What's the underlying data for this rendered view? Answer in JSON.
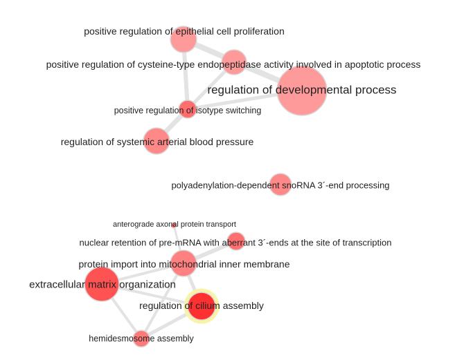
{
  "network": {
    "nodes": [
      {
        "id": "n1",
        "label": "positive regulation of epithelial cell proliferation",
        "color": "#ff9a9a"
      },
      {
        "id": "n2",
        "label": "positive regulation of cysteine-type endopeptidase activity involved in apoptotic process",
        "color": "#ff9a9a"
      },
      {
        "id": "n3",
        "label": "regulation of developmental process",
        "color": "#ff9a9a"
      },
      {
        "id": "n4",
        "label": "positive regulation of isotype switching",
        "color": "#ff6e6e"
      },
      {
        "id": "n5",
        "label": "regulation of systemic arterial blood pressure",
        "color": "#ff8888"
      },
      {
        "id": "n6",
        "label": "polyadenylation-dependent snoRNA 3´-end processing",
        "color": "#ff8888"
      },
      {
        "id": "n7",
        "label": "anterograde axonal protein transport",
        "color": "#ff7070"
      },
      {
        "id": "n8",
        "label": "nuclear retention of pre-mRNA with aberrant 3´-ends at the site of transcription",
        "color": "#ff7070"
      },
      {
        "id": "n9",
        "label": "protein import into mitochondrial inner membrane",
        "color": "#ff8080"
      },
      {
        "id": "n10",
        "label": "extracellular matrix organization",
        "color": "#ff5252"
      },
      {
        "id": "n11",
        "label": "regulation of cilium assembly",
        "color": "#ff3030",
        "highlighted": true
      },
      {
        "id": "n12",
        "label": "hemidesmosome assembly",
        "color": "#ff7a7a"
      }
    ],
    "edges": [
      {
        "source": "n1",
        "target": "n2"
      },
      {
        "source": "n1",
        "target": "n3"
      },
      {
        "source": "n1",
        "target": "n4"
      },
      {
        "source": "n2",
        "target": "n3"
      },
      {
        "source": "n2",
        "target": "n4"
      },
      {
        "source": "n4",
        "target": "n3"
      },
      {
        "source": "n4",
        "target": "n5"
      },
      {
        "source": "n7",
        "target": "n9"
      },
      {
        "source": "n8",
        "target": "n9"
      },
      {
        "source": "n9",
        "target": "n10"
      },
      {
        "source": "n9",
        "target": "n11"
      },
      {
        "source": "n9",
        "target": "n12"
      },
      {
        "source": "n10",
        "target": "n11"
      },
      {
        "source": "n10",
        "target": "n12"
      },
      {
        "source": "n11",
        "target": "n12"
      }
    ]
  }
}
